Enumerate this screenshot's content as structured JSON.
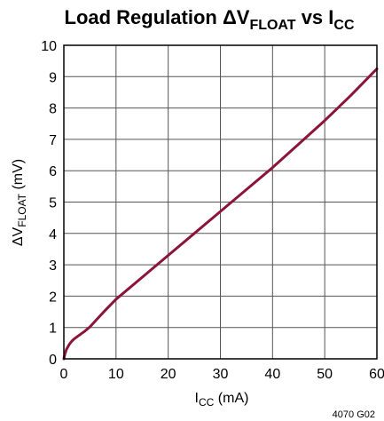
{
  "chart_data": {
    "type": "line",
    "title": {
      "prefix": "Load Regulation ΔV",
      "sub1": "FLOAT",
      "mid": " vs I",
      "sub2": "CC"
    },
    "xlabel": {
      "main": "I",
      "sub": "CC",
      "suffix": " (mA)"
    },
    "ylabel": {
      "main": "ΔV",
      "sub": "FLOAT",
      "suffix": " (mV)"
    },
    "xlim": [
      0,
      60
    ],
    "ylim": [
      0,
      10
    ],
    "xticks": [
      "0",
      "10",
      "20",
      "30",
      "40",
      "50",
      "60"
    ],
    "yticks": [
      "0",
      "1",
      "2",
      "3",
      "4",
      "5",
      "6",
      "7",
      "8",
      "9",
      "10"
    ],
    "grid": true,
    "series": [
      {
        "color": "#8b1538",
        "points": [
          [
            0,
            0
          ],
          [
            0.2,
            0.15
          ],
          [
            0.5,
            0.3
          ],
          [
            1,
            0.45
          ],
          [
            1.5,
            0.56
          ],
          [
            2,
            0.64
          ],
          [
            3,
            0.76
          ],
          [
            4,
            0.88
          ],
          [
            5,
            1.02
          ],
          [
            6,
            1.2
          ],
          [
            7,
            1.38
          ],
          [
            8,
            1.56
          ],
          [
            9,
            1.73
          ],
          [
            10,
            1.9
          ],
          [
            15,
            2.6
          ],
          [
            20,
            3.3
          ],
          [
            25,
            4.0
          ],
          [
            30,
            4.7
          ],
          [
            35,
            5.4
          ],
          [
            40,
            6.1
          ],
          [
            45,
            6.85
          ],
          [
            50,
            7.6
          ],
          [
            55,
            8.4
          ],
          [
            60,
            9.25
          ]
        ]
      }
    ]
  },
  "figure_code": "4070 G02"
}
